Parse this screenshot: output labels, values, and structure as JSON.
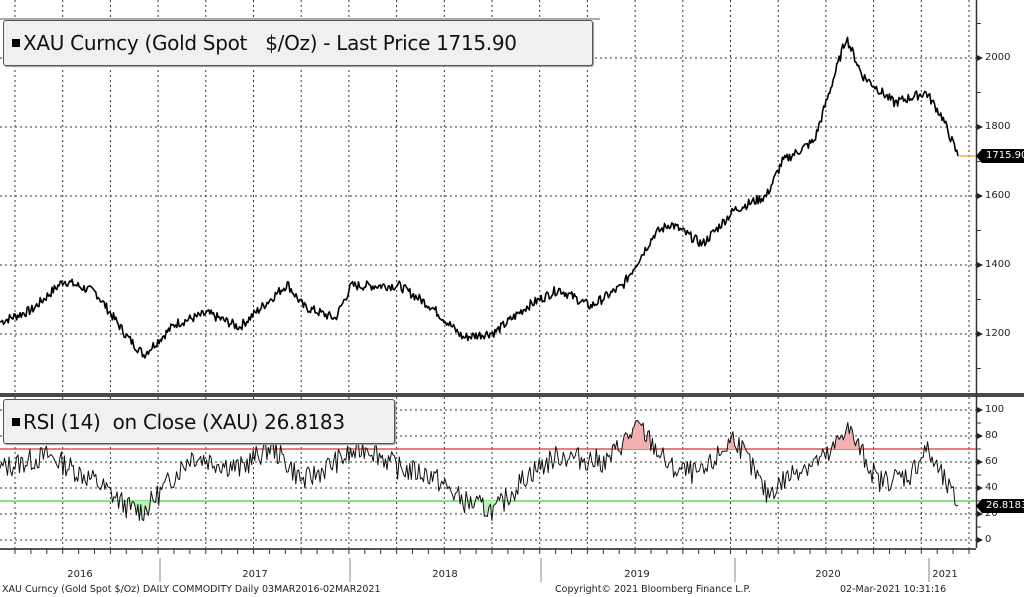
{
  "price_panel": {
    "legend_label": "XAU Curncy (Gold Spot   $/Oz) - Last Price",
    "legend_value": "1715.90",
    "last_tag": "1715.90",
    "y_ticks": [
      "2000",
      "1800",
      "1600",
      "1400",
      "1200"
    ],
    "line_color": "#000000",
    "last_line_color": "#f0a030"
  },
  "rsi_panel": {
    "legend_label": "RSI (14)  on Close (XAU)",
    "legend_value": "26.8183",
    "last_tag": "26.8183",
    "y_ticks": [
      "100",
      "80",
      "60",
      "40",
      "20",
      "0"
    ],
    "overbought": 70,
    "oversold": 30,
    "overbought_color": "#e03030",
    "oversold_color": "#40d040",
    "fill_color": "#f4b0b0"
  },
  "x_axis": {
    "years": [
      "2016",
      "2017",
      "2018",
      "2019",
      "2020",
      "2021"
    ]
  },
  "footer": {
    "left": "XAU Curncy (Gold Spot   $/Oz) DAILY COMMODITY  Daily 03MAR2016-02MAR2021",
    "center": "Copyright© 2021 Bloomberg Finance L.P.",
    "right": "02-Mar-2021 10:31:16"
  },
  "chart_data": [
    {
      "type": "line",
      "title": "XAU Curncy (Gold Spot $/Oz) - Last Price 1715.90",
      "xlabel": "",
      "ylabel": "",
      "ylim": [
        1040,
        2100
      ],
      "grid": true,
      "legend_position": "top-left",
      "x": [
        "2016-03",
        "2016-05",
        "2016-07",
        "2016-09",
        "2016-11",
        "2016-12",
        "2017-02",
        "2017-04",
        "2017-06",
        "2017-09",
        "2017-10",
        "2017-12",
        "2018-01",
        "2018-04",
        "2018-06",
        "2018-08",
        "2018-10",
        "2018-12",
        "2019-02",
        "2019-04",
        "2019-06",
        "2019-08",
        "2019-09",
        "2019-11",
        "2020-01",
        "2020-03",
        "2020-04",
        "2020-06",
        "2020-08",
        "2020-09",
        "2020-11",
        "2021-01",
        "2021-02",
        "2021-03"
      ],
      "series": [
        {
          "name": "Gold Spot $/Oz",
          "values": [
            1235,
            1270,
            1355,
            1320,
            1190,
            1140,
            1230,
            1260,
            1220,
            1345,
            1280,
            1245,
            1340,
            1340,
            1280,
            1190,
            1205,
            1280,
            1330,
            1280,
            1340,
            1490,
            1520,
            1460,
            1560,
            1600,
            1700,
            1760,
            2060,
            1950,
            1870,
            1900,
            1830,
            1715.9
          ]
        }
      ]
    },
    {
      "type": "line",
      "title": "RSI (14) on Close (XAU) 26.8183",
      "xlabel": "",
      "ylabel": "",
      "ylim": [
        -5,
        105
      ],
      "grid": true,
      "reference_lines": [
        {
          "value": 70,
          "color": "red"
        },
        {
          "value": 30,
          "color": "green"
        }
      ],
      "x": [
        "2016-03",
        "2016-06",
        "2016-09",
        "2016-11",
        "2016-12",
        "2017-03",
        "2017-06",
        "2017-08",
        "2017-10",
        "2017-12",
        "2018-02",
        "2018-04",
        "2018-06",
        "2018-08",
        "2018-10",
        "2018-12",
        "2019-02",
        "2019-05",
        "2019-06",
        "2019-07",
        "2019-09",
        "2019-11",
        "2020-01",
        "2020-03",
        "2020-05",
        "2020-07",
        "2020-08",
        "2020-10",
        "2020-12",
        "2021-01",
        "2021-03"
      ],
      "series": [
        {
          "name": "RSI(14)",
          "values": [
            55,
            65,
            45,
            25,
            22,
            65,
            55,
            72,
            45,
            60,
            72,
            55,
            50,
            30,
            22,
            50,
            65,
            60,
            75,
            88,
            55,
            50,
            80,
            35,
            55,
            65,
            88,
            45,
            50,
            70,
            26.8183
          ]
        }
      ]
    }
  ]
}
